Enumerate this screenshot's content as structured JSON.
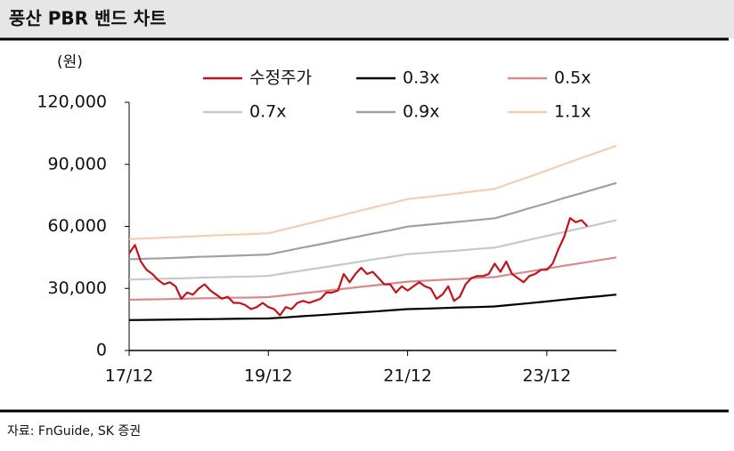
{
  "chart_data": {
    "type": "line",
    "title": "풍산 PBR 밴드 차트",
    "unit_label": "(원)",
    "source": "자료: FnGuide, SK 증권",
    "xlim": [
      "17/12",
      "24/12"
    ],
    "xticks": [
      "17/12",
      "19/12",
      "21/12",
      "23/12"
    ],
    "ylim": [
      0,
      120000
    ],
    "yticks": [
      0,
      {
        "value": 30000,
        "label": "30,000"
      },
      {
        "value": 60000,
        "label": "60,000"
      },
      {
        "value": 90000,
        "label": "90,000"
      },
      {
        "value": 120000,
        "label": "120,000"
      }
    ],
    "series": [
      {
        "name": "수정주가",
        "color": "#c0141c",
        "x": [
          "17/12",
          "18/01",
          "18/02",
          "18/03",
          "18/04",
          "18/05",
          "18/06",
          "18/07",
          "18/08",
          "18/09",
          "18/10",
          "18/11",
          "18/12",
          "19/01",
          "19/02",
          "19/03",
          "19/04",
          "19/05",
          "19/06",
          "19/07",
          "19/08",
          "19/09",
          "19/10",
          "19/11",
          "19/12",
          "20/01",
          "20/02",
          "20/03",
          "20/04",
          "20/05",
          "20/06",
          "20/07",
          "20/08",
          "20/09",
          "20/10",
          "20/11",
          "20/12",
          "21/01",
          "21/02",
          "21/03",
          "21/04",
          "21/05",
          "21/06",
          "21/07",
          "21/08",
          "21/09",
          "21/10",
          "21/11",
          "21/12",
          "22/01",
          "22/02",
          "22/03",
          "22/04",
          "22/05",
          "22/06",
          "22/07",
          "22/08",
          "22/09",
          "22/10",
          "22/11",
          "22/12",
          "23/01",
          "23/02",
          "23/03",
          "23/04",
          "23/05",
          "23/06",
          "23/07",
          "23/08",
          "23/09",
          "23/10",
          "23/11",
          "23/12",
          "24/01",
          "24/02",
          "24/03",
          "24/04",
          "24/05",
          "24/06",
          "24/07"
        ],
        "values": [
          47000,
          51000,
          43000,
          39000,
          37000,
          34000,
          32000,
          33000,
          31000,
          25000,
          28000,
          27000,
          30000,
          32000,
          29000,
          27000,
          25000,
          26000,
          23000,
          23000,
          22000,
          20000,
          21000,
          23000,
          21000,
          20000,
          17000,
          21000,
          20000,
          23000,
          24000,
          23000,
          24000,
          25000,
          28000,
          28000,
          29000,
          37000,
          33000,
          37000,
          40000,
          37000,
          38000,
          35000,
          32000,
          32000,
          28000,
          31000,
          29000,
          31000,
          33000,
          31000,
          30000,
          25000,
          27000,
          31000,
          24000,
          26000,
          32000,
          35000,
          36000,
          36000,
          37000,
          42000,
          38000,
          43000,
          37000,
          35000,
          33000,
          36000,
          37000,
          39000,
          39000,
          42000,
          49000,
          55000,
          64000,
          62000,
          63000,
          60000
        ]
      },
      {
        "name": "0.3x",
        "color": "#000000",
        "x": [
          "17/12",
          "18/03",
          "18/06",
          "18/09",
          "18/12",
          "19/03",
          "19/06",
          "19/09",
          "19/12",
          "20/03",
          "20/06",
          "20/09",
          "20/12",
          "21/03",
          "21/06",
          "21/09",
          "21/12",
          "22/03",
          "22/06",
          "22/09",
          "22/12",
          "23/03",
          "23/06",
          "23/09",
          "23/12",
          "24/03",
          "24/06",
          "24/09",
          "24/12"
        ],
        "values": [
          14700,
          14800,
          14900,
          15000,
          15100,
          15200,
          15300,
          15400,
          15500,
          16000,
          16600,
          17100,
          17700,
          18300,
          18800,
          19400,
          20000,
          20200,
          20500,
          20800,
          21000,
          21300,
          22100,
          22900,
          23700,
          24600,
          25400,
          26200,
          27000
        ]
      },
      {
        "name": "0.5x",
        "color": "#d98a8c",
        "x": [
          "17/12",
          "18/03",
          "18/06",
          "18/09",
          "18/12",
          "19/03",
          "19/06",
          "19/09",
          "19/12",
          "20/03",
          "20/06",
          "20/09",
          "20/12",
          "21/03",
          "21/06",
          "21/09",
          "21/12",
          "22/03",
          "22/06",
          "22/09",
          "22/12",
          "23/03",
          "23/06",
          "23/09",
          "23/12",
          "24/03",
          "24/06",
          "24/09",
          "24/12"
        ],
        "values": [
          24500,
          24700,
          24800,
          25000,
          25200,
          25300,
          25500,
          25600,
          25800,
          26700,
          27700,
          28600,
          29500,
          30500,
          31400,
          32300,
          33300,
          33700,
          34200,
          34600,
          35100,
          35500,
          36900,
          38200,
          39600,
          41000,
          42300,
          43700,
          45000
        ]
      },
      {
        "name": "0.7x",
        "color": "#c8c8c8",
        "x": [
          "17/12",
          "18/03",
          "18/06",
          "18/09",
          "18/12",
          "19/03",
          "19/06",
          "19/09",
          "19/12",
          "20/03",
          "20/06",
          "20/09",
          "20/12",
          "21/03",
          "21/06",
          "21/09",
          "21/12",
          "22/03",
          "22/06",
          "22/09",
          "22/12",
          "23/03",
          "23/06",
          "23/09",
          "23/12",
          "24/03",
          "24/06",
          "24/09",
          "24/12"
        ],
        "values": [
          34300,
          34500,
          34700,
          34900,
          35200,
          35400,
          35600,
          35800,
          36100,
          37400,
          38700,
          40000,
          41300,
          42600,
          44000,
          45200,
          46600,
          47200,
          47800,
          48400,
          49100,
          49700,
          51600,
          53500,
          55400,
          57300,
          59200,
          61100,
          63000
        ]
      },
      {
        "name": "0.9x",
        "color": "#a0a0a0",
        "x": [
          "17/12",
          "18/03",
          "18/06",
          "18/09",
          "18/12",
          "19/03",
          "19/06",
          "19/09",
          "19/12",
          "20/03",
          "20/06",
          "20/09",
          "20/12",
          "21/03",
          "21/06",
          "21/09",
          "21/12",
          "22/03",
          "22/06",
          "22/09",
          "22/12",
          "23/03",
          "23/06",
          "23/09",
          "23/12",
          "24/03",
          "24/06",
          "24/09",
          "24/12"
        ],
        "values": [
          44100,
          44400,
          44600,
          44900,
          45300,
          45500,
          45800,
          46100,
          46400,
          48100,
          49800,
          51400,
          53100,
          54800,
          56500,
          58100,
          59900,
          60700,
          61500,
          62300,
          63100,
          63900,
          66300,
          68800,
          71200,
          73700,
          76100,
          78600,
          81000
        ]
      },
      {
        "name": "1.1x",
        "color": "#f5cdb0",
        "x": [
          "17/12",
          "18/03",
          "18/06",
          "18/09",
          "18/12",
          "19/03",
          "19/06",
          "19/09",
          "19/12",
          "20/03",
          "20/06",
          "20/09",
          "20/12",
          "21/03",
          "21/06",
          "21/09",
          "21/12",
          "22/03",
          "22/06",
          "22/09",
          "22/12",
          "23/03",
          "23/06",
          "23/09",
          "23/12",
          "24/03",
          "24/06",
          "24/09",
          "24/12"
        ],
        "values": [
          53900,
          54200,
          54600,
          54900,
          55300,
          55700,
          56000,
          56300,
          56700,
          58700,
          60800,
          62800,
          64900,
          67000,
          69100,
          71100,
          73200,
          74100,
          75100,
          76100,
          77100,
          78100,
          81100,
          84000,
          87000,
          90100,
          93100,
          96000,
          99000
        ]
      }
    ]
  }
}
